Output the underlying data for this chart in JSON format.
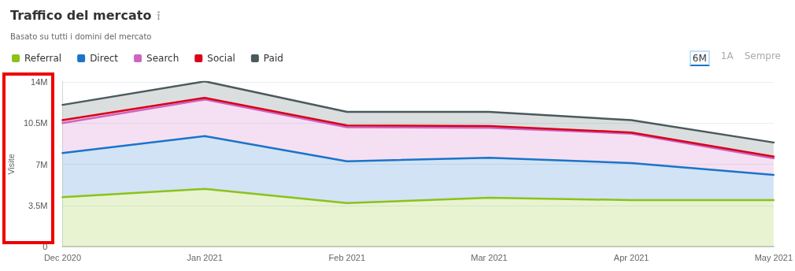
{
  "chart_data": {
    "type": "area",
    "title": "Traffico del mercato",
    "subtitle": "Basato su tutti i domini del mercato",
    "ylabel": "Visite",
    "categories": [
      "Dec 2020",
      "Jan 2021",
      "Feb 2021",
      "Mar 2021",
      "Apr 2021",
      "May 2021"
    ],
    "stacked": true,
    "series": [
      {
        "name": "Referral",
        "color": "#8bc21a",
        "values": [
          4.2,
          4.9,
          3.7,
          4.15,
          3.95,
          3.95
        ]
      },
      {
        "name": "Direct",
        "color": "#1b74c9",
        "values": [
          3.75,
          4.5,
          3.55,
          3.4,
          3.15,
          2.15
        ]
      },
      {
        "name": "Search",
        "color": "#cc66c2",
        "values": [
          2.55,
          3.1,
          2.9,
          2.55,
          2.5,
          1.4
        ]
      },
      {
        "name": "Social",
        "color": "#d9001b",
        "values": [
          0.25,
          0.15,
          0.15,
          0.15,
          0.1,
          0.15
        ]
      },
      {
        "name": "Paid",
        "color": "#4b5a5c",
        "values": [
          1.3,
          1.4,
          1.15,
          1.2,
          1.05,
          1.2
        ]
      }
    ],
    "ylim": [
      0,
      14
    ],
    "yticks": [
      0,
      {
        "value": 3.5,
        "label": "3.5M"
      },
      {
        "value": 7,
        "label": "7M"
      },
      {
        "value": 10.5,
        "label": "10.5M"
      },
      {
        "value": 14,
        "label": "14M"
      }
    ],
    "grid": "y",
    "legend": "top left",
    "line_style": "solid",
    "annotations": [
      "6M",
      "1A",
      "Sempre"
    ]
  }
}
